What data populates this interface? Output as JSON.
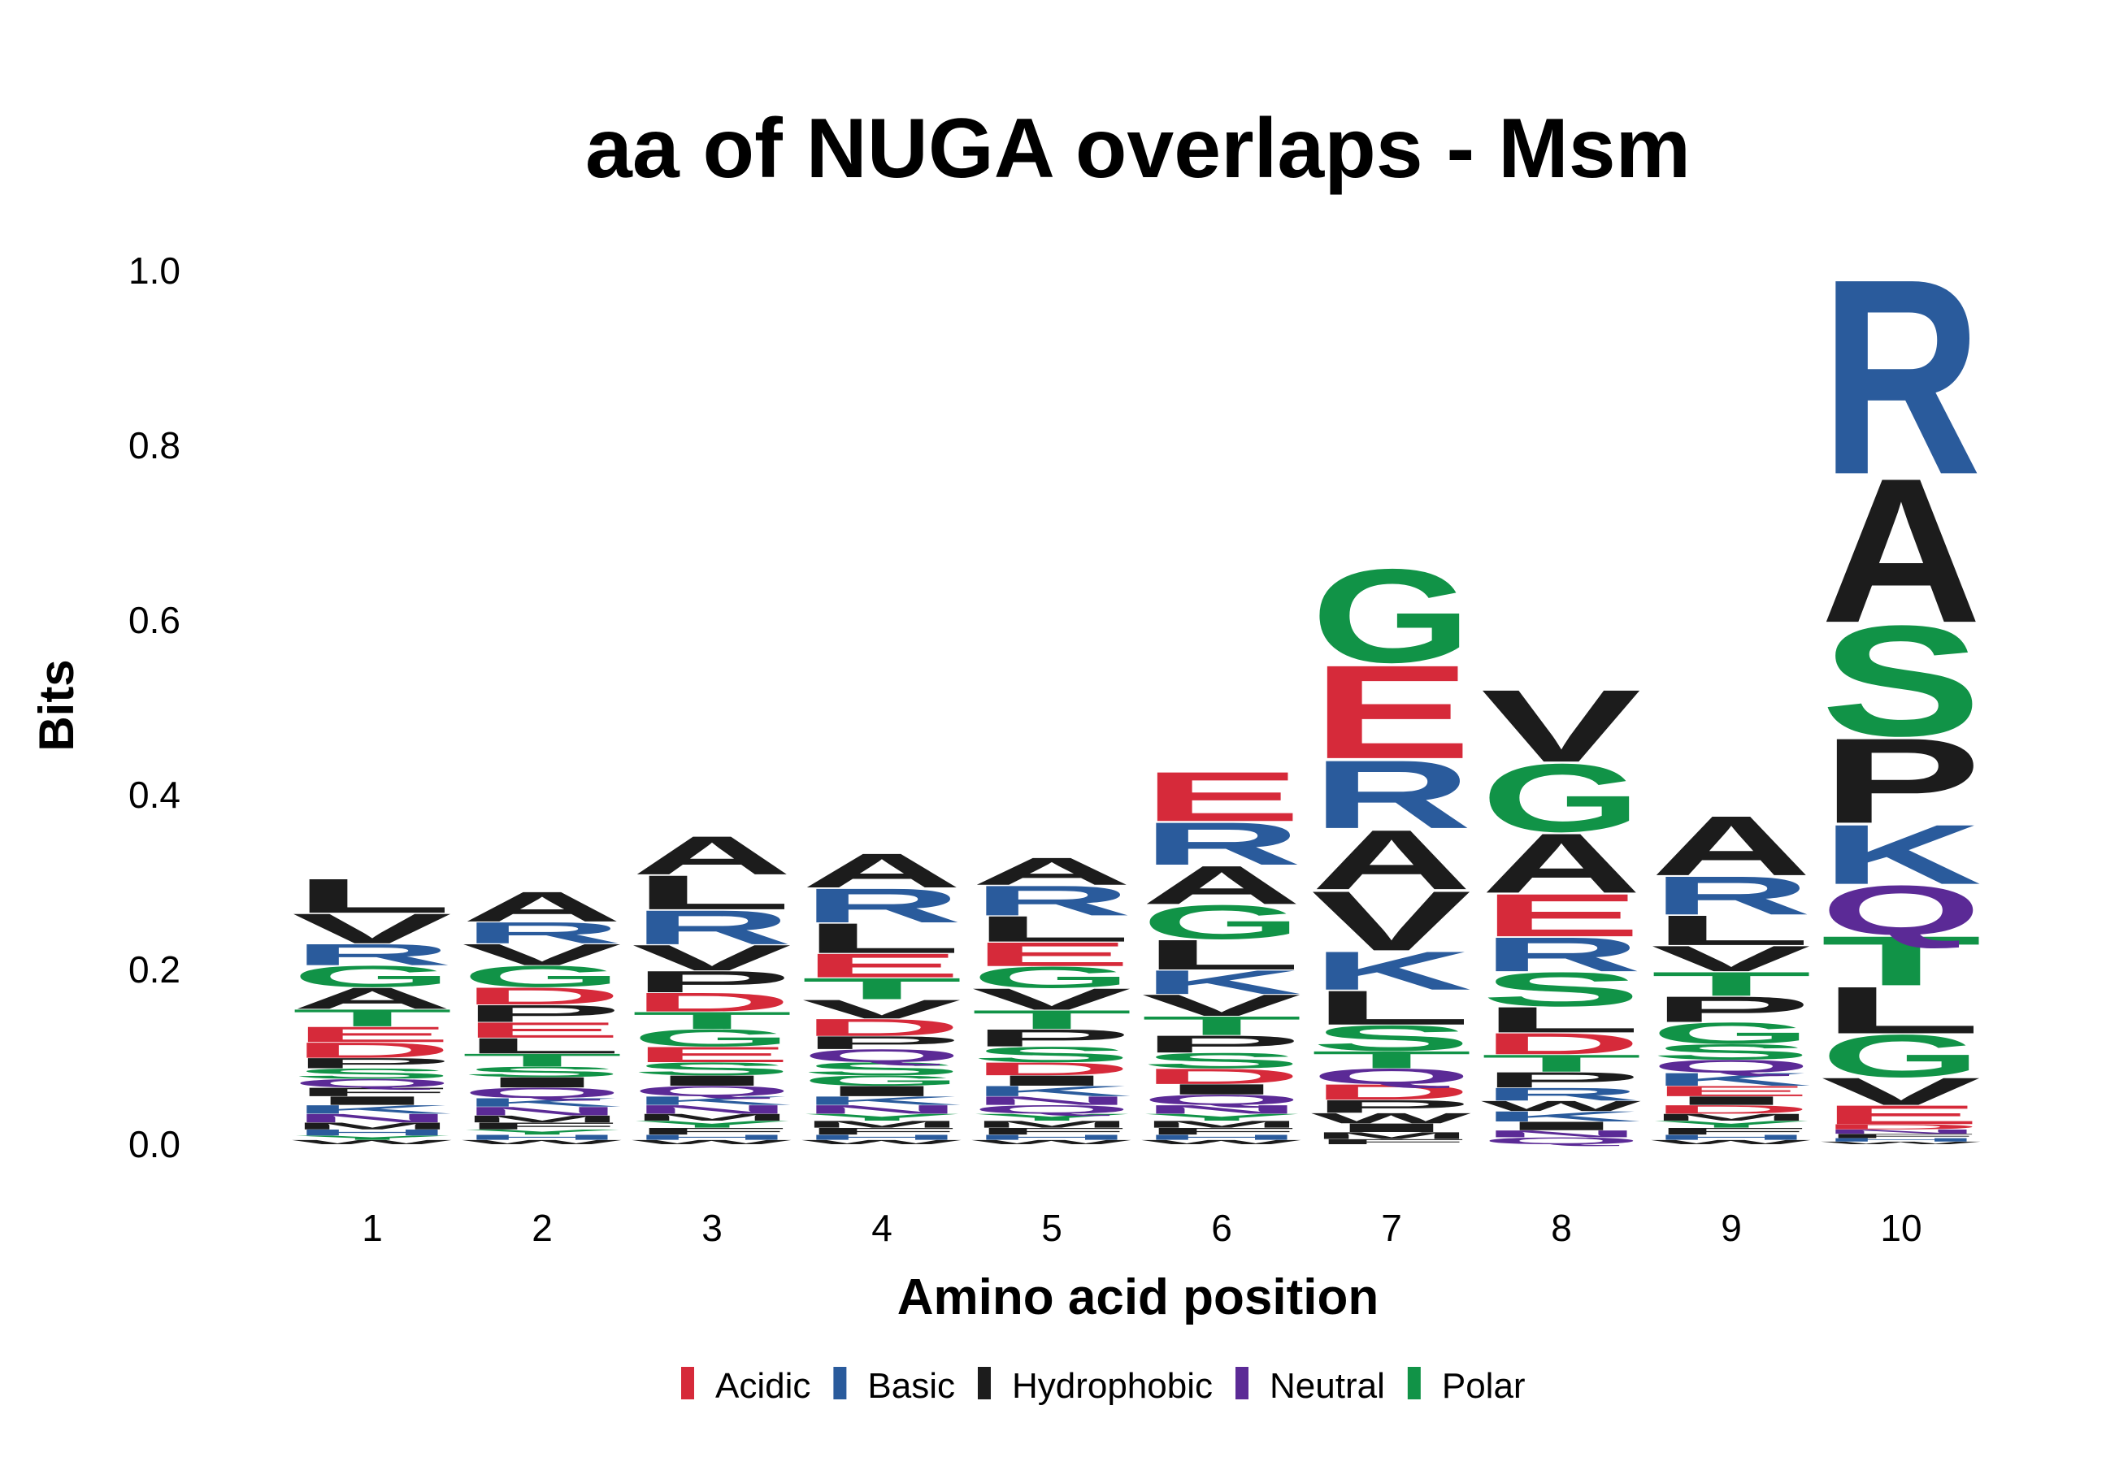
{
  "chart_data": {
    "type": "sequence-logo",
    "title": "aa of NUGA overlaps - Msm",
    "xlabel": "Amino acid position",
    "ylabel": "Bits",
    "ylim": [
      0,
      1.0
    ],
    "yticks": [
      "0.0",
      "0.2",
      "0.4",
      "0.6",
      "0.8",
      "1.0"
    ],
    "ytick_values": [
      0.0,
      0.2,
      0.4,
      0.6,
      0.8,
      1.0
    ],
    "xticks": [
      "1",
      "2",
      "3",
      "4",
      "5",
      "6",
      "7",
      "8",
      "9",
      "10"
    ],
    "legend": {
      "placement": "bottom-center",
      "items": [
        {
          "label": "Acidic",
          "color": "#d62a3a"
        },
        {
          "label": "Basic",
          "color": "#2a5b9c"
        },
        {
          "label": "Hydrophobic",
          "color": "#1c1c1c"
        },
        {
          "label": "Neutral",
          "color": "#5b2a96"
        },
        {
          "label": "Polar",
          "color": "#119347"
        }
      ]
    },
    "class_of": {
      "D": "Acidic",
      "E": "Acidic",
      "R": "Basic",
      "K": "Basic",
      "H": "Basic",
      "A": "Hydrophobic",
      "V": "Hydrophobic",
      "L": "Hydrophobic",
      "I": "Hydrophobic",
      "P": "Hydrophobic",
      "F": "Hydrophobic",
      "W": "Hydrophobic",
      "M": "Hydrophobic",
      "Q": "Neutral",
      "N": "Neutral",
      "G": "Polar",
      "S": "Polar",
      "T": "Polar",
      "C": "Polar",
      "Y": "Polar"
    },
    "positions": [
      {
        "position": "1",
        "letters": [
          [
            "W",
            0.005
          ],
          [
            "Y",
            0.005
          ],
          [
            "H",
            0.007
          ],
          [
            "M",
            0.008
          ],
          [
            "N",
            0.01
          ],
          [
            "K",
            0.01
          ],
          [
            "I",
            0.01
          ],
          [
            "F",
            0.01
          ],
          [
            "Q",
            0.01
          ],
          [
            "S",
            0.012
          ],
          [
            "P",
            0.012
          ],
          [
            "D",
            0.018
          ],
          [
            "E",
            0.018
          ],
          [
            "T",
            0.02
          ],
          [
            "A",
            0.025
          ],
          [
            "G",
            0.025
          ],
          [
            "R",
            0.025
          ],
          [
            "V",
            0.035
          ],
          [
            "L",
            0.04
          ],
          [
            "A2",
            0.0
          ]
        ]
      },
      {
        "position": "2",
        "letters": [
          [
            "W",
            0.005
          ],
          [
            "H",
            0.006
          ],
          [
            "Y",
            0.006
          ],
          [
            "F",
            0.008
          ],
          [
            "M",
            0.008
          ],
          [
            "N",
            0.01
          ],
          [
            "K",
            0.01
          ],
          [
            "Q",
            0.012
          ],
          [
            "I",
            0.012
          ],
          [
            "S",
            0.012
          ],
          [
            "T",
            0.015
          ],
          [
            "L",
            0.018
          ],
          [
            "E",
            0.018
          ],
          [
            "P",
            0.02
          ],
          [
            "D",
            0.02
          ],
          [
            "G",
            0.025
          ],
          [
            "V",
            0.025
          ],
          [
            "R",
            0.025
          ],
          [
            "A",
            0.035
          ]
        ]
      },
      {
        "position": "3",
        "letters": [
          [
            "W",
            0.005
          ],
          [
            "H",
            0.006
          ],
          [
            "F",
            0.008
          ],
          [
            "Y",
            0.008
          ],
          [
            "M",
            0.008
          ],
          [
            "N",
            0.01
          ],
          [
            "K",
            0.01
          ],
          [
            "Q",
            0.012
          ],
          [
            "I",
            0.012
          ],
          [
            "S",
            0.015
          ],
          [
            "E",
            0.018
          ],
          [
            "G",
            0.02
          ],
          [
            "T",
            0.02
          ],
          [
            "D",
            0.022
          ],
          [
            "P",
            0.025
          ],
          [
            "V",
            0.03
          ],
          [
            "R",
            0.04
          ],
          [
            "L",
            0.04
          ],
          [
            "A",
            0.045
          ]
        ]
      },
      {
        "position": "4",
        "letters": [
          [
            "W",
            0.005
          ],
          [
            "H",
            0.006
          ],
          [
            "F",
            0.008
          ],
          [
            "M",
            0.008
          ],
          [
            "Y",
            0.008
          ],
          [
            "N",
            0.01
          ],
          [
            "K",
            0.01
          ],
          [
            "I",
            0.012
          ],
          [
            "G",
            0.012
          ],
          [
            "S",
            0.015
          ],
          [
            "Q",
            0.015
          ],
          [
            "P",
            0.015
          ],
          [
            "D",
            0.02
          ],
          [
            "V",
            0.022
          ],
          [
            "T",
            0.025
          ],
          [
            "E",
            0.028
          ],
          [
            "L",
            0.035
          ],
          [
            "R",
            0.04
          ],
          [
            "A",
            0.04
          ]
        ]
      },
      {
        "position": "5",
        "letters": [
          [
            "W",
            0.005
          ],
          [
            "H",
            0.006
          ],
          [
            "F",
            0.008
          ],
          [
            "M",
            0.008
          ],
          [
            "Y",
            0.008
          ],
          [
            "Q",
            0.01
          ],
          [
            "N",
            0.01
          ],
          [
            "K",
            0.012
          ],
          [
            "I",
            0.012
          ],
          [
            "D",
            0.015
          ],
          [
            "S",
            0.018
          ],
          [
            "P",
            0.02
          ],
          [
            "T",
            0.022
          ],
          [
            "V",
            0.025
          ],
          [
            "G",
            0.025
          ],
          [
            "E",
            0.028
          ],
          [
            "L",
            0.03
          ],
          [
            "R",
            0.035
          ],
          [
            "A",
            0.032
          ]
        ]
      },
      {
        "position": "6",
        "letters": [
          [
            "W",
            0.005
          ],
          [
            "H",
            0.006
          ],
          [
            "F",
            0.008
          ],
          [
            "M",
            0.008
          ],
          [
            "Y",
            0.008
          ],
          [
            "N",
            0.01
          ],
          [
            "Q",
            0.012
          ],
          [
            "I",
            0.012
          ],
          [
            "D",
            0.018
          ],
          [
            "S",
            0.018
          ],
          [
            "P",
            0.02
          ],
          [
            "T",
            0.022
          ],
          [
            "V",
            0.025
          ],
          [
            "K",
            0.028
          ],
          [
            "L",
            0.035
          ],
          [
            "G",
            0.04
          ],
          [
            "A",
            0.045
          ],
          [
            "R",
            0.05
          ],
          [
            "E",
            0.058
          ]
        ]
      },
      {
        "position": "7",
        "letters": [
          [
            "F",
            0.006
          ],
          [
            "M",
            0.008
          ],
          [
            "I",
            0.01
          ],
          [
            "W",
            0.012
          ],
          [
            "P",
            0.015
          ],
          [
            "D",
            0.018
          ],
          [
            "Q",
            0.018
          ],
          [
            "T",
            0.02
          ],
          [
            "S",
            0.03
          ],
          [
            "L",
            0.04
          ],
          [
            "K",
            0.045
          ],
          [
            "V",
            0.07
          ],
          [
            "A",
            0.07
          ],
          [
            "R",
            0.08
          ],
          [
            "E",
            0.11
          ],
          [
            "G",
            0.11
          ]
        ]
      },
      {
        "position": "8",
        "letters": [
          [
            "Q",
            0.008
          ],
          [
            "N",
            0.008
          ],
          [
            "I",
            0.01
          ],
          [
            "K",
            0.012
          ],
          [
            "W",
            0.012
          ],
          [
            "R",
            0.015
          ],
          [
            "P",
            0.018
          ],
          [
            "T",
            0.02
          ],
          [
            "D",
            0.025
          ],
          [
            "L",
            0.03
          ],
          [
            "S",
            0.04
          ],
          [
            "R2",
            0.04
          ],
          [
            "E",
            0.05
          ],
          [
            "A",
            0.07
          ],
          [
            "G",
            0.08
          ],
          [
            "V",
            0.085
          ]
        ]
      },
      {
        "position": "9",
        "letters": [
          [
            "W",
            0.005
          ],
          [
            "H",
            0.006
          ],
          [
            "F",
            0.008
          ],
          [
            "Y",
            0.008
          ],
          [
            "M",
            0.008
          ],
          [
            "D",
            0.01
          ],
          [
            "I",
            0.01
          ],
          [
            "E",
            0.012
          ],
          [
            "K",
            0.015
          ],
          [
            "Q",
            0.015
          ],
          [
            "S",
            0.018
          ],
          [
            "G",
            0.025
          ],
          [
            "P",
            0.03
          ],
          [
            "T",
            0.028
          ],
          [
            "V",
            0.03
          ],
          [
            "L",
            0.035
          ],
          [
            "R",
            0.045
          ],
          [
            "A",
            0.07
          ]
        ]
      },
      {
        "position": "10",
        "letters": [
          [
            "W",
            0.003
          ],
          [
            "H",
            0.004
          ],
          [
            "F",
            0.005
          ],
          [
            "N",
            0.005
          ],
          [
            "D",
            0.006
          ],
          [
            "E",
            0.022
          ],
          [
            "V",
            0.032
          ],
          [
            "G",
            0.05
          ],
          [
            "L",
            0.055
          ],
          [
            "T",
            0.058
          ],
          [
            "Q",
            0.058
          ],
          [
            "K",
            0.07
          ],
          [
            "P",
            0.1
          ],
          [
            "S",
            0.13
          ],
          [
            "A",
            0.17
          ],
          [
            "R",
            0.23
          ]
        ]
      }
    ]
  }
}
